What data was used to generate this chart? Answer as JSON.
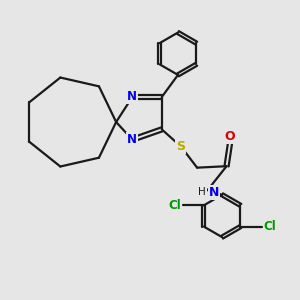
{
  "bg_color": "#e6e6e6",
  "bond_color": "#1a1a1a",
  "N_color": "#0000ee",
  "S_color": "#bbaa00",
  "O_color": "#dd0000",
  "Cl_color": "#009900",
  "line_width": 1.6,
  "figsize": [
    3.0,
    3.0
  ],
  "dpi": 100,
  "xlim": [
    0,
    10
  ],
  "ylim": [
    0,
    10
  ]
}
